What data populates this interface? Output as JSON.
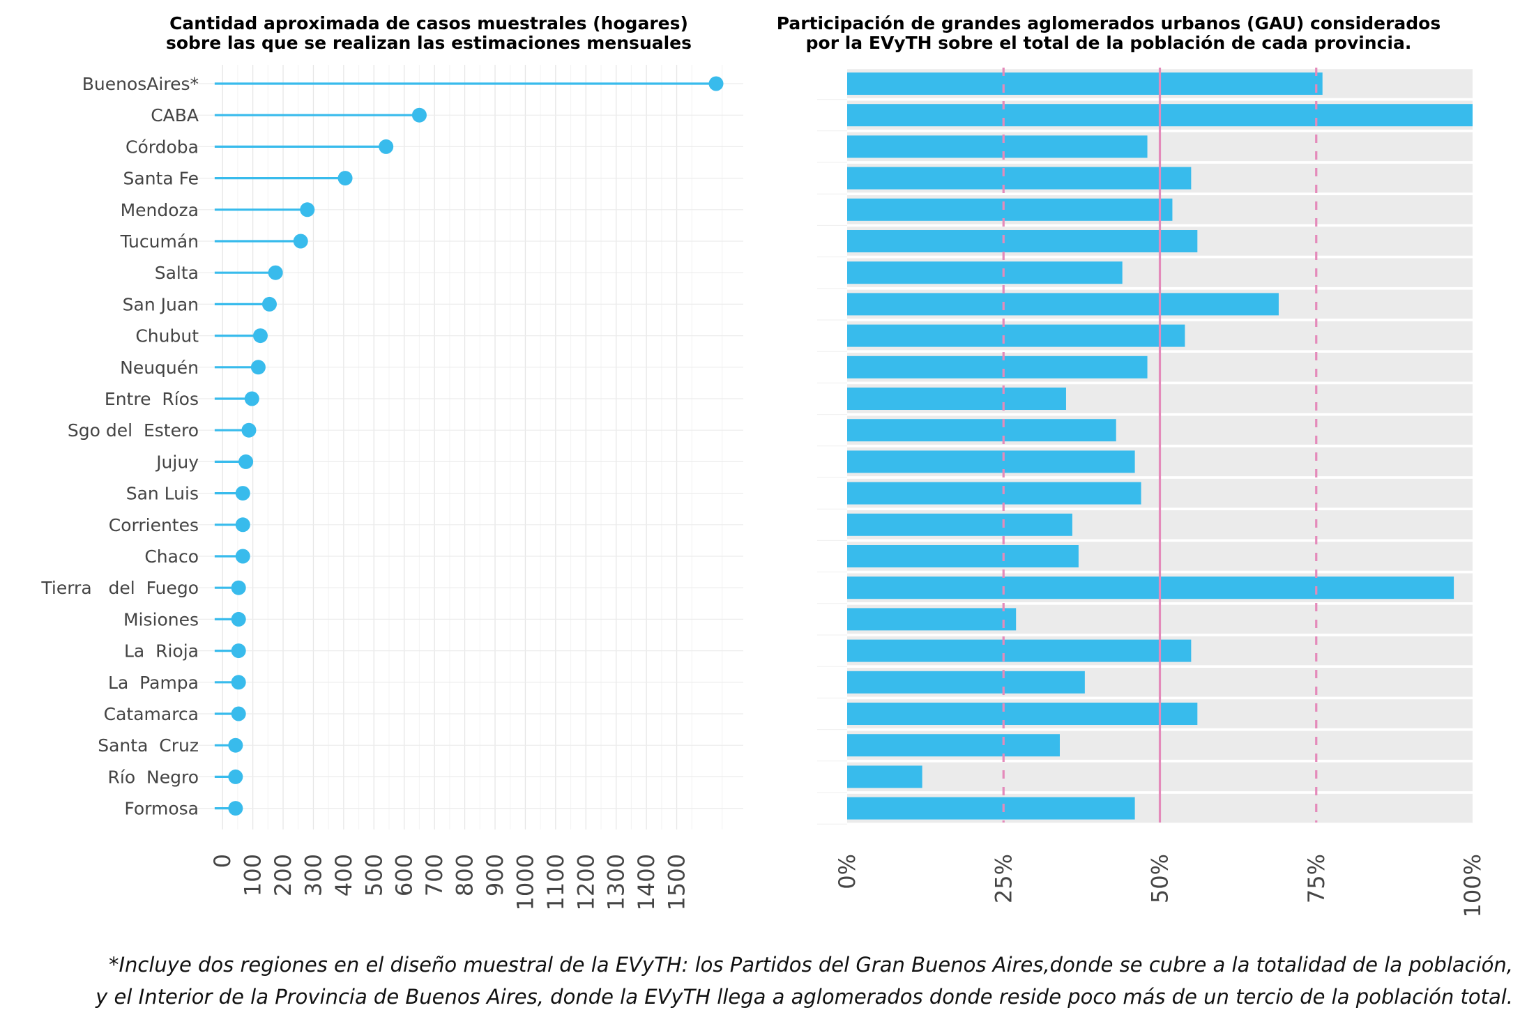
{
  "chart_data": [
    {
      "type": "lollipop",
      "title_lines": [
        "Cantidad aproximada de casos muestrales (hogares)",
        "sobre las que se realizan las estimaciones mensuales"
      ],
      "xlabel": "",
      "ylabel": "",
      "xlim": [
        -40,
        1720
      ],
      "ticks": [
        "0",
        "100",
        "200",
        "300",
        "400",
        "500",
        "600",
        "700",
        "800",
        "900",
        "1000",
        "1100",
        "1200",
        "1300",
        "1400",
        "1500"
      ],
      "grid": true,
      "color": "#38bbec",
      "categories": [
        "BuenosAires*",
        "CABA",
        "Córdoba",
        "Santa Fe",
        "Mendoza",
        "Tucumán",
        "Salta",
        "San Juan",
        "Chubut",
        "Neuquén",
        "Entre  Ríos",
        "Sgo del  Estero",
        "Jujuy",
        "San Luis",
        "Corrientes",
        "Chaco",
        "Tierra   del  Fuego",
        "Misiones",
        "La  Rioja",
        "La  Pampa",
        "Catamarca",
        "Santa  Cruz",
        "Río  Negro",
        "Formosa"
      ],
      "values": [
        1630,
        650,
        540,
        405,
        280,
        258,
        175,
        155,
        125,
        118,
        97,
        87,
        77,
        67,
        67,
        67,
        53,
        53,
        53,
        53,
        53,
        43,
        43,
        43
      ]
    },
    {
      "type": "bar",
      "orientation": "horizontal",
      "title_lines": [
        "Participación de grandes aglomerados urbanos (GAU) considerados",
        "por la EVyTH sobre el total de la población de cada provincia."
      ],
      "xlabel": "",
      "ylabel": "",
      "xlim": [
        0,
        100
      ],
      "ticks": [
        "0%",
        "25%",
        "50%",
        "75%",
        "100%"
      ],
      "reference_lines": [
        {
          "value": 25,
          "style": "dashed",
          "color": "#e48aba"
        },
        {
          "value": 50,
          "style": "solid",
          "color": "#e48aba"
        },
        {
          "value": 75,
          "style": "dashed",
          "color": "#e48aba"
        }
      ],
      "bar_color": "#38bbec",
      "background_color": "#ebebeb",
      "categories": [
        "BuenosAires*",
        "CABA",
        "Córdoba",
        "Santa Fe",
        "Mendoza",
        "Tucumán",
        "Salta",
        "San Juan",
        "Chubut",
        "Neuquén",
        "Entre  Ríos",
        "Sgo del  Estero",
        "Jujuy",
        "San Luis",
        "Corrientes",
        "Chaco",
        "Tierra   del  Fuego",
        "Misiones",
        "La  Rioja",
        "La  Pampa",
        "Catamarca",
        "Santa  Cruz",
        "Río  Negro",
        "Formosa"
      ],
      "values": [
        76,
        100,
        48,
        55,
        52,
        56,
        44,
        69,
        54,
        48,
        35,
        43,
        46,
        47,
        36,
        37,
        97,
        27,
        55,
        38,
        56,
        34,
        12,
        46
      ]
    }
  ],
  "footnote_lines": [
    "*Incluye dos regiones en el diseño muestral de la EVyTH: los Partidos del Gran Buenos Aires,donde se cubre a la totalidad de la población,",
    "y el Interior de la Provincia de Buenos Aires, donde la EVyTH llega a aglomerados donde reside poco más de un tercio de la población total."
  ]
}
